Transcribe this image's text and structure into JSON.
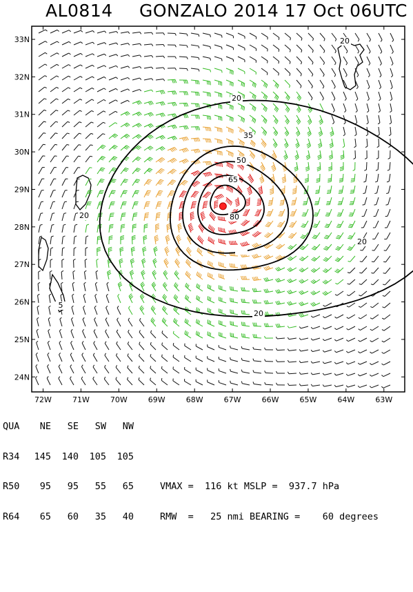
{
  "header": {
    "storm_id": "AL0814",
    "title": "GONZALO 2014 17 Oct 06UTC"
  },
  "map": {
    "lat_labels": [
      "33N",
      "32N",
      "31N",
      "30N",
      "29N",
      "28N",
      "27N",
      "26N",
      "25N",
      "24N"
    ],
    "lat_values": [
      33,
      32,
      31,
      30,
      29,
      28,
      27,
      26,
      25,
      24
    ],
    "lon_labels": [
      "72W",
      "71W",
      "70W",
      "69W",
      "68W",
      "67W",
      "66W",
      "65W",
      "64W",
      "63W"
    ],
    "lon_values": [
      -72,
      -71,
      -70,
      -69,
      -68,
      -67,
      -66,
      -65,
      -64,
      -63
    ],
    "lon_range": [
      -72.3,
      -62.45
    ],
    "lat_range": [
      23.6,
      33.35
    ],
    "center": {
      "lon": -67.25,
      "lat": 28.55
    },
    "contour_labels": [
      "20",
      "35",
      "50",
      "65",
      "80",
      "20",
      "20",
      "5",
      "20",
      "20"
    ],
    "colors": {
      "barb_low": "#111111",
      "barb_r34": "#33bb22",
      "barb_r50": "#e8a030",
      "barb_r64": "#e02020",
      "center_marker": "#ff2222",
      "contour": "#000000"
    }
  },
  "wind_table": {
    "headers": [
      "QUA",
      "NE",
      "SE",
      "SW",
      "NW"
    ],
    "rows": [
      {
        "label": "R34",
        "values": [
          "145",
          "140",
          "105",
          "105"
        ]
      },
      {
        "label": "R50",
        "values": [
          "95",
          "95",
          "55",
          "65"
        ]
      },
      {
        "label": "R64",
        "values": [
          "65",
          "60",
          "35",
          "40"
        ]
      }
    ]
  },
  "stats": {
    "line1": "VMAX =  116 kt MSLP =  937.7 hPa",
    "line2": "RMW  =   25 nmi BEARING =    60 degrees"
  }
}
